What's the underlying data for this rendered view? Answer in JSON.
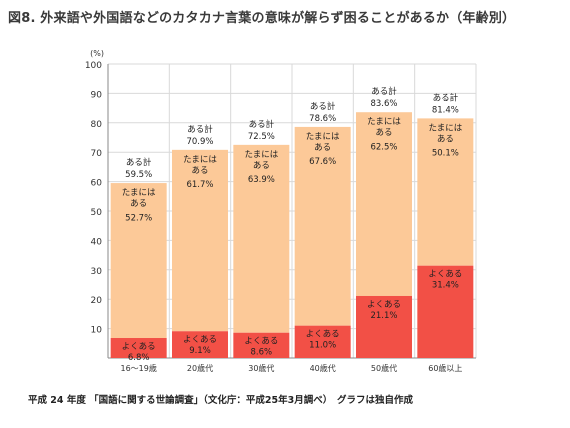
{
  "title": "図8.  外来語や外国語などのカタカナ言葉の意味が解らず困ることがあるか（年齢別）",
  "footer": "平成 24 年度 「国語に関する世論調査」（文化庁：平成25年3月調べ）　グラフは独自作成",
  "chart_data": {
    "type": "bar",
    "stacked": true,
    "unit_label": "(%)",
    "ylim": [
      0,
      100
    ],
    "yticks": [
      10,
      20,
      30,
      40,
      50,
      60,
      70,
      80,
      90,
      100
    ],
    "grid": true,
    "categories": [
      "16〜19歳",
      "20歳代",
      "30歳代",
      "40歳代",
      "50歳代",
      "60歳以上"
    ],
    "series": [
      {
        "name": "よくある",
        "values": [
          6.8,
          9.1,
          8.6,
          11.0,
          21.1,
          31.4
        ],
        "value_labels": [
          "6.8%",
          "9.1%",
          "8.6%",
          "11.0%",
          "21.1%",
          "31.4%"
        ],
        "color": "#f25046"
      },
      {
        "name": "たまにはある",
        "values": [
          52.7,
          61.7,
          63.9,
          67.6,
          62.5,
          50.1
        ],
        "value_labels": [
          "52.7%",
          "61.7%",
          "63.9%",
          "67.6%",
          "62.5%",
          "50.1%"
        ],
        "color": "#fcc998"
      }
    ],
    "totals": {
      "name": "ある計",
      "values": [
        59.5,
        70.9,
        72.5,
        78.6,
        83.6,
        81.4
      ],
      "value_labels": [
        "59.5%",
        "70.9%",
        "72.5%",
        "78.6%",
        "83.6%",
        "81.4%"
      ]
    },
    "axis_color": "#888888",
    "grid_color": "#d9d9d9"
  }
}
